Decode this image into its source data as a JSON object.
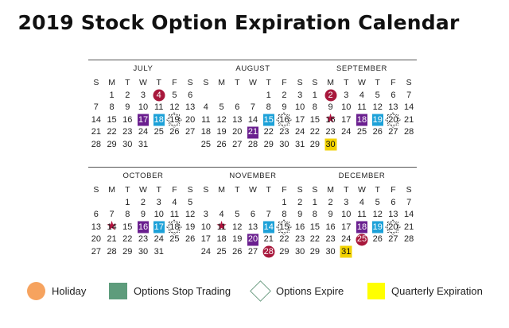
{
  "title": "2019 Stock Option Expiration Calendar",
  "weekdays": [
    "S",
    "M",
    "T",
    "W",
    "T",
    "F",
    "S"
  ],
  "months": [
    {
      "name": "JULY",
      "offset": 1,
      "days": 31,
      "marks": {
        "4": "holiday",
        "17": "stop",
        "18": "stopblue",
        "19": "expire"
      }
    },
    {
      "name": "AUGUST",
      "offset": 4,
      "days": 31,
      "marks": {
        "15": "stopblue",
        "16": "expire",
        "21": "stop"
      }
    },
    {
      "name": "SEPTEMBER",
      "offset": 0,
      "days": 30,
      "marks": {
        "2": "holiday",
        "16": "star",
        "18": "stop",
        "19": "stopblue",
        "20": "expire",
        "30": "quarter"
      }
    },
    {
      "name": "OCTOBER",
      "offset": 2,
      "days": 31,
      "marks": {
        "14": "star",
        "16": "stop",
        "17": "stopblue",
        "18": "expire"
      }
    },
    {
      "name": "NOVEMBER",
      "offset": 5,
      "days": 30,
      "marks": {
        "11": "star",
        "14": "stopblue",
        "15": "expire",
        "20": "stop",
        "28": "holiday"
      }
    },
    {
      "name": "DECEMBER",
      "offset": 0,
      "days": 31,
      "marks": {
        "18": "stop",
        "19": "stopblue",
        "20": "expire",
        "25": "holiday",
        "31": "quarter"
      }
    }
  ],
  "legend": {
    "holiday": "Holiday",
    "stop": "Options Stop Trading",
    "expire": "Options Expire",
    "quarter": "Quarterly Expiration"
  },
  "colors": {
    "holiday_legend": "#f6a35f",
    "holiday_mark": "#a8183c",
    "stop_legend": "#5e9c7c",
    "stop_mark": "#6a1f8f",
    "stop_mark_alt": "#1da1d8",
    "quarter": "#f2d200"
  }
}
